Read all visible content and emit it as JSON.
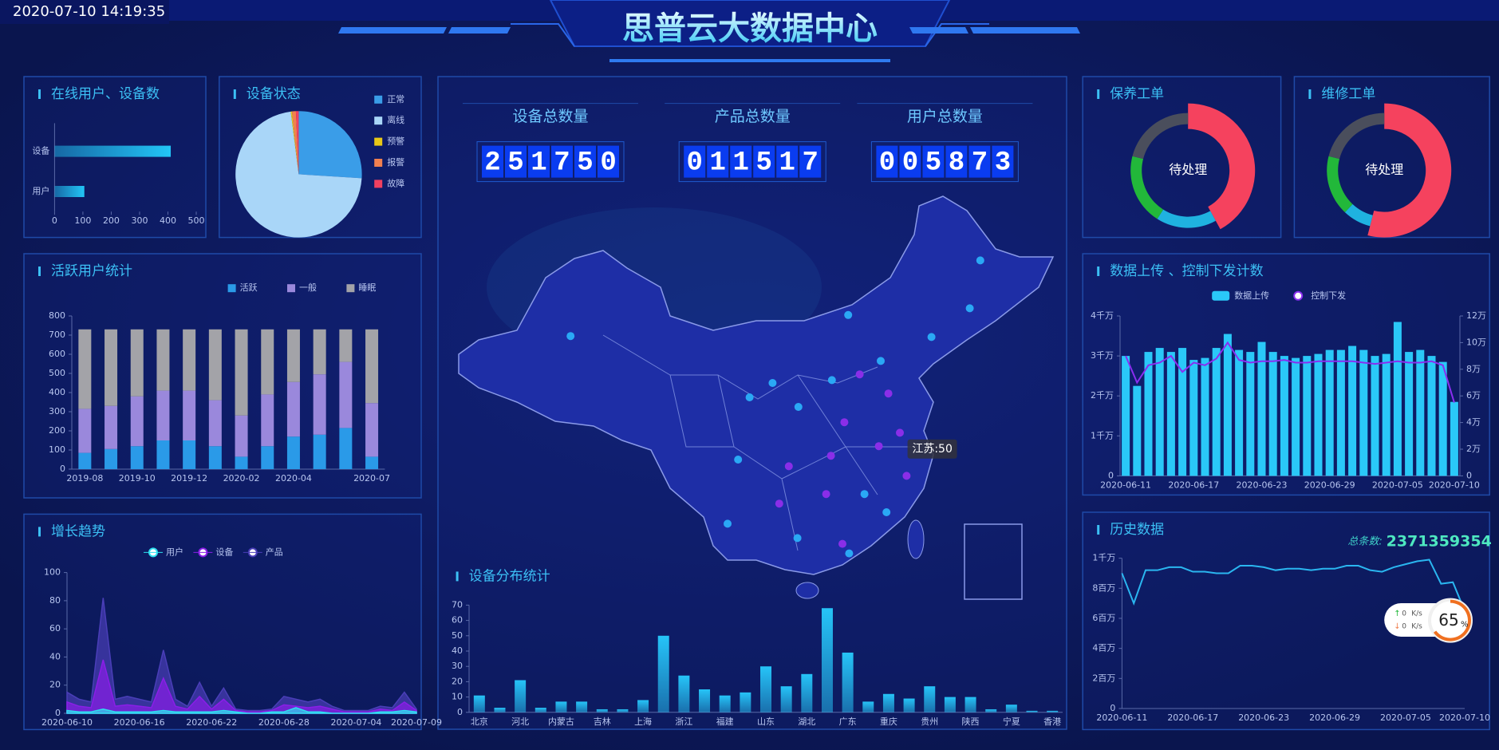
{
  "header": {
    "datetime": "2020-07-10 14:19:35",
    "title": "思普云大数据中心"
  },
  "counters": [
    {
      "label": "设备总数量",
      "value": "251750"
    },
    {
      "label": "产品总数量",
      "value": "011517"
    },
    {
      "label": "用户总数量",
      "value": "005873"
    }
  ],
  "map": {
    "tooltip": "江苏:50"
  },
  "chart_data": [
    {
      "type": "hbar",
      "title": "在线用户、设备数",
      "categories": [
        "设备",
        "用户"
      ],
      "values": [
        410,
        105
      ],
      "color": "#22c6f7",
      "xlim": [
        0,
        500
      ],
      "xticks": [
        0,
        100,
        200,
        300,
        400,
        500
      ]
    },
    {
      "type": "pie",
      "title": "设备状态",
      "categories": [
        "正常",
        "离线",
        "预警",
        "报警",
        "故障"
      ],
      "values": [
        26,
        72,
        0.3,
        1,
        0.7
      ],
      "colors": [
        "#3a9de8",
        "#a9d6f8",
        "#e8c817",
        "#f08050",
        "#f04060"
      ]
    },
    {
      "type": "stacked_bar",
      "title": "活跃用户统计",
      "categories": [
        "2019-08",
        null,
        "2019-10",
        null,
        "2019-12",
        null,
        "2020-02",
        null,
        "2020-04",
        null,
        null,
        "2020-07"
      ],
      "series": [
        {
          "name": "活跃",
          "color": "#2a9ae8",
          "values": [
            85,
            105,
            120,
            150,
            150,
            120,
            65,
            120,
            170,
            180,
            215,
            65
          ]
        },
        {
          "name": "一般",
          "color": "#9a88dc",
          "values": [
            230,
            225,
            260,
            260,
            260,
            240,
            215,
            270,
            285,
            315,
            345,
            280
          ]
        },
        {
          "name": "睡眠",
          "color": "#a3a3a8",
          "values": [
            415,
            400,
            350,
            320,
            320,
            370,
            450,
            340,
            275,
            235,
            170,
            385
          ]
        }
      ],
      "ylim": [
        0,
        800
      ],
      "yticks": [
        0,
        100,
        200,
        300,
        400,
        500,
        600,
        700,
        800
      ]
    },
    {
      "type": "area",
      "title": "增长趋势",
      "categories": [
        "2020-06-10",
        null,
        null,
        null,
        null,
        null,
        "2020-06-16",
        null,
        null,
        null,
        null,
        null,
        "2020-06-22",
        null,
        null,
        null,
        null,
        null,
        "2020-06-28",
        null,
        null,
        null,
        null,
        null,
        "2020-07-04",
        null,
        null,
        null,
        null,
        "2020-07-09"
      ],
      "series": [
        {
          "name": "用户",
          "color": "#2ee0f0",
          "values": [
            2,
            1,
            1,
            3,
            1,
            1,
            1,
            1,
            2,
            1,
            1,
            1,
            1,
            2,
            1,
            0,
            0,
            1,
            1,
            4,
            1,
            1,
            0,
            0,
            0,
            0,
            1,
            1,
            2,
            1
          ]
        },
        {
          "name": "设备",
          "color": "#8a1ee8",
          "values": [
            8,
            5,
            4,
            38,
            5,
            6,
            5,
            4,
            25,
            5,
            3,
            12,
            3,
            10,
            2,
            1,
            1,
            2,
            6,
            5,
            4,
            5,
            3,
            1,
            1,
            1,
            3,
            2,
            8,
            2
          ]
        },
        {
          "name": "产品",
          "color": "#4a3eb8",
          "values": [
            15,
            10,
            8,
            82,
            10,
            12,
            10,
            8,
            45,
            10,
            5,
            22,
            5,
            18,
            3,
            2,
            2,
            3,
            12,
            10,
            8,
            10,
            5,
            2,
            2,
            2,
            5,
            4,
            15,
            3
          ]
        }
      ],
      "ylim": [
        0,
        100
      ],
      "yticks": [
        0,
        20,
        40,
        60,
        80,
        100
      ]
    },
    {
      "type": "bar",
      "title": "设备分布统计",
      "categories": [
        "北京",
        null,
        "河北",
        null,
        "内蒙古",
        null,
        "吉林",
        null,
        "上海",
        null,
        "浙江",
        null,
        "福建",
        null,
        "山东",
        null,
        "湖北",
        null,
        "广东",
        null,
        "重庆",
        null,
        "贵州",
        null,
        "陕西",
        null,
        "宁夏",
        null,
        "香港"
      ],
      "values": [
        11,
        3,
        21,
        3,
        7,
        7,
        2,
        2,
        8,
        50,
        24,
        15,
        11,
        13,
        30,
        17,
        25,
        68,
        39,
        7,
        12,
        9,
        17,
        10,
        10,
        2,
        5,
        1,
        1
      ],
      "color": "#26c4f8",
      "ylim": [
        0,
        70
      ],
      "yticks": [
        0,
        10,
        20,
        30,
        40,
        50,
        60,
        70
      ]
    },
    {
      "type": "donut",
      "title": "保养工单",
      "center_label": "待处理",
      "values": [
        42,
        17,
        20,
        21
      ],
      "colors": [
        "#f5425e",
        "#1fb2e0",
        "#22b83a",
        "#4a4e5c"
      ]
    },
    {
      "type": "donut",
      "title": "维修工单",
      "center_label": "待处理",
      "values": [
        54,
        8,
        17,
        21
      ],
      "colors": [
        "#f5425e",
        "#1fb2e0",
        "#22b83a",
        "#4a4e5c"
      ]
    },
    {
      "type": "bar_line",
      "title": "数据上传 、控制下发计数",
      "categories": [
        "2020-06-11",
        null,
        null,
        null,
        null,
        null,
        "2020-06-17",
        null,
        null,
        null,
        null,
        null,
        "2020-06-23",
        null,
        null,
        null,
        null,
        null,
        "2020-06-29",
        null,
        null,
        null,
        null,
        null,
        "2020-07-05",
        null,
        null,
        null,
        null,
        "2020-07-10"
      ],
      "series": [
        {
          "name": "数据上传",
          "color": "#2ac8f8",
          "values": [
            30000000,
            22500000,
            31000000,
            32000000,
            31000000,
            32000000,
            29000000,
            29500000,
            32000000,
            35500000,
            31500000,
            31000000,
            33500000,
            31000000,
            30000000,
            29500000,
            30000000,
            30500000,
            31500000,
            31500000,
            32500000,
            31500000,
            30000000,
            30500000,
            38500000,
            31000000,
            31500000,
            30000000,
            28500000,
            18500000
          ]
        },
        {
          "name": "控制下发",
          "color": "#8a2ef0",
          "axis": "y2",
          "values": [
            90000,
            70000,
            83000,
            85000,
            90000,
            78000,
            85000,
            83000,
            88000,
            100000,
            87000,
            85000,
            86000,
            86000,
            87000,
            85000,
            85000,
            86000,
            86000,
            86000,
            86000,
            85000,
            84000,
            85000,
            86000,
            85000,
            85000,
            86000,
            83000,
            55000
          ]
        }
      ],
      "ylim": [
        0,
        40000000
      ],
      "yticks": [
        0,
        {
          "value": 10000000,
          "label": "1千万"
        },
        {
          "value": 20000000,
          "label": "2千万"
        },
        {
          "value": 30000000,
          "label": "3千万"
        },
        {
          "value": 40000000,
          "label": "4千万"
        }
      ],
      "y2lim": [
        0,
        120000
      ],
      "y2ticks": [
        0,
        {
          "value": 20000,
          "label": "2万"
        },
        {
          "value": 40000,
          "label": "4万"
        },
        {
          "value": 60000,
          "label": "6万"
        },
        {
          "value": 80000,
          "label": "8万"
        },
        {
          "value": 100000,
          "label": "10万"
        },
        {
          "value": 120000,
          "label": "12万"
        }
      ]
    },
    {
      "type": "line",
      "title": "历史数据",
      "total_label": "总条数:",
      "total": 2371359354,
      "color": "#2ab6f0",
      "categories": [
        "2020-06-11",
        null,
        null,
        null,
        null,
        null,
        "2020-06-17",
        null,
        null,
        null,
        null,
        null,
        "2020-06-23",
        null,
        null,
        null,
        null,
        null,
        "2020-06-29",
        null,
        null,
        null,
        null,
        null,
        "2020-07-05",
        null,
        null,
        null,
        null,
        "2020-07-10"
      ],
      "values": [
        9000000,
        7000000,
        9200000,
        9200000,
        9400000,
        9400000,
        9100000,
        9100000,
        9000000,
        9000000,
        9500000,
        9500000,
        9400000,
        9200000,
        9300000,
        9300000,
        9200000,
        9300000,
        9300000,
        9500000,
        9500000,
        9200000,
        9100000,
        9400000,
        9600000,
        9800000,
        9900000,
        8300000,
        8400000,
        6500000
      ],
      "ylim": [
        0,
        10000000
      ],
      "yticks": [
        0,
        {
          "value": 2000000,
          "label": "2百万"
        },
        {
          "value": 4000000,
          "label": "4百万"
        },
        {
          "value": 6000000,
          "label": "6百万"
        },
        {
          "value": 8000000,
          "label": "8百万"
        },
        {
          "value": 10000000,
          "label": "1千万"
        }
      ],
      "widget": {
        "up": "0",
        "down": "0",
        "unit": "K/s",
        "percent": 65,
        "percent_unit": "%"
      }
    }
  ]
}
